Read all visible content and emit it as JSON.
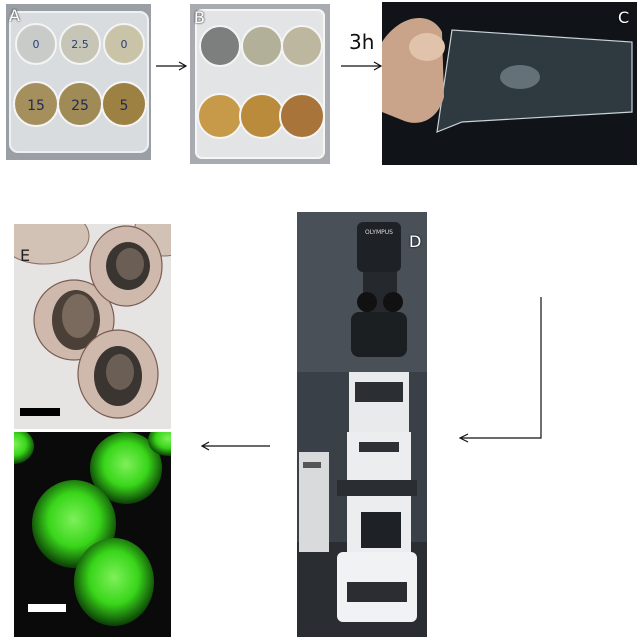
{
  "panels": {
    "a": {
      "label": "A",
      "well_marks": [
        "0",
        "2.5",
        "0",
        "15",
        "25",
        "5"
      ]
    },
    "b": {
      "label": "B"
    },
    "c": {
      "label": "C"
    },
    "d": {
      "label": "D",
      "brand_text": "OLYMPUS"
    },
    "e": {
      "label": "E"
    }
  },
  "arrows": {
    "a_to_b": "",
    "b_to_c": "3h"
  },
  "colors": {
    "fluorescence": "#39d61a",
    "background_dark": "#0a0a0a"
  }
}
